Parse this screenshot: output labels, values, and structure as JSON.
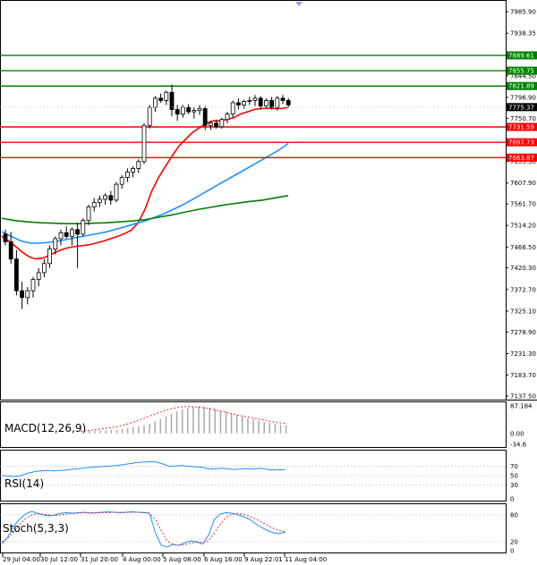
{
  "chart_data": {
    "type": "candlestick",
    "x_ticks": [
      "29 Jul 04:00",
      "30 Jul 12:00",
      "31 Jul 20:00",
      "4 Aug 00:00",
      "5 Aug 08:00",
      "6 Aug 16:00",
      "9 Aug 22:01",
      "11 Aug 04:00"
    ],
    "price_axis": {
      "ticks": [
        "7985.90",
        "7938.35",
        "7844.50",
        "7796.90",
        "7750.70",
        "7655.30",
        "7607.90",
        "7561.70",
        "7514.20",
        "7466.50",
        "7420.30",
        "7372.70",
        "7325.10",
        "7278.90",
        "7231.30",
        "7183.70",
        "7137.50"
      ],
      "ylim": [
        7137.5,
        8000
      ]
    },
    "candles": [
      [
        7495,
        7505,
        7470,
        7478
      ],
      [
        7478,
        7500,
        7430,
        7440
      ],
      [
        7440,
        7460,
        7360,
        7370
      ],
      [
        7370,
        7390,
        7330,
        7355
      ],
      [
        7355,
        7378,
        7340,
        7370
      ],
      [
        7370,
        7400,
        7355,
        7395
      ],
      [
        7395,
        7420,
        7380,
        7410
      ],
      [
        7410,
        7440,
        7400,
        7430
      ],
      [
        7430,
        7470,
        7420,
        7462
      ],
      [
        7462,
        7490,
        7450,
        7485
      ],
      [
        7485,
        7505,
        7470,
        7498
      ],
      [
        7498,
        7512,
        7485,
        7490
      ],
      [
        7490,
        7510,
        7470,
        7505
      ],
      [
        7505,
        7520,
        7420,
        7495
      ],
      [
        7495,
        7530,
        7490,
        7525
      ],
      [
        7525,
        7560,
        7515,
        7555
      ],
      [
        7555,
        7575,
        7545,
        7565
      ],
      [
        7565,
        7580,
        7555,
        7572
      ],
      [
        7572,
        7585,
        7560,
        7580
      ],
      [
        7580,
        7590,
        7560,
        7570
      ],
      [
        7570,
        7610,
        7565,
        7605
      ],
      [
        7605,
        7625,
        7595,
        7620
      ],
      [
        7620,
        7640,
        7610,
        7632
      ],
      [
        7632,
        7645,
        7620,
        7640
      ],
      [
        7640,
        7660,
        7630,
        7655
      ],
      [
        7655,
        7740,
        7650,
        7735
      ],
      [
        7735,
        7780,
        7728,
        7775
      ],
      [
        7775,
        7800,
        7765,
        7795
      ],
      [
        7795,
        7805,
        7785,
        7790
      ],
      [
        7790,
        7812,
        7780,
        7808
      ],
      [
        7808,
        7825,
        7755,
        7770
      ],
      [
        7770,
        7780,
        7745,
        7760
      ],
      [
        7760,
        7780,
        7752,
        7775
      ],
      [
        7775,
        7782,
        7760,
        7765
      ],
      [
        7765,
        7775,
        7750,
        7768
      ],
      [
        7768,
        7780,
        7758,
        7772
      ],
      [
        7772,
        7778,
        7725,
        7735
      ],
      [
        7735,
        7745,
        7725,
        7740
      ],
      [
        7740,
        7748,
        7728,
        7732
      ],
      [
        7732,
        7752,
        7728,
        7748
      ],
      [
        7748,
        7765,
        7740,
        7760
      ],
      [
        7760,
        7790,
        7752,
        7785
      ],
      [
        7785,
        7795,
        7770,
        7780
      ],
      [
        7780,
        7792,
        7772,
        7788
      ],
      [
        7788,
        7798,
        7780,
        7790
      ],
      [
        7790,
        7802,
        7778,
        7795
      ],
      [
        7795,
        7800,
        7770,
        7778
      ],
      [
        7778,
        7795,
        7772,
        7790
      ],
      [
        7790,
        7798,
        7770,
        7775
      ],
      [
        7775,
        7800,
        7768,
        7795
      ],
      [
        7795,
        7802,
        7782,
        7790
      ],
      [
        7790,
        7795,
        7775,
        7780
      ]
    ],
    "moving_averages": [
      {
        "color": "#ff0000",
        "values": [
          7490,
          7480,
          7468,
          7455,
          7445,
          7440,
          7442,
          7448,
          7456,
          7462,
          7466,
          7468,
          7470,
          7472,
          7476,
          7480,
          7485,
          7490,
          7496,
          7504,
          7520,
          7550,
          7590,
          7620,
          7645,
          7668,
          7690,
          7705,
          7720,
          7730,
          7740,
          7745,
          7745,
          7748,
          7752,
          7760,
          7765,
          7770,
          7772,
          7773,
          7772,
          7772,
          7775
        ]
      },
      {
        "color": "#1e90ff",
        "values": [
          7500,
          7490,
          7480,
          7475,
          7475,
          7477,
          7480,
          7484,
          7488,
          7492,
          7496,
          7500,
          7506,
          7512,
          7518,
          7524,
          7532,
          7540,
          7550,
          7560,
          7572,
          7584,
          7596,
          7608,
          7620,
          7632,
          7644,
          7656,
          7668,
          7680,
          7695
        ]
      },
      {
        "color": "#008000",
        "values": [
          7530,
          7525,
          7522,
          7520,
          7519,
          7518,
          7518,
          7519,
          7520,
          7522,
          7524,
          7527,
          7532,
          7537,
          7543,
          7549,
          7554,
          7559,
          7563,
          7567,
          7570,
          7575,
          7580
        ]
      }
    ],
    "levels": [
      {
        "value": "7889.61",
        "color": "#008000"
      },
      {
        "value": "7855.75",
        "color": "#008000"
      },
      {
        "value": "7821.89",
        "color": "#008000"
      },
      {
        "value": "7731.59",
        "color": "#ff0000"
      },
      {
        "value": "7697.73",
        "color": "#ff0000"
      },
      {
        "value": "7663.87",
        "color": "#ff0000"
      }
    ],
    "current_price": "7775.37",
    "macd": {
      "label": "MACD(12,26,9)",
      "ticks": [
        "87.184",
        "0.00",
        "-34.6"
      ],
      "ylim": [
        -34.6,
        87.184
      ],
      "histogram": [
        8,
        9,
        9,
        10,
        11,
        12,
        14,
        17,
        20,
        22,
        25,
        30,
        38,
        46,
        54,
        62,
        70,
        76,
        80,
        84,
        86,
        85,
        82,
        78,
        73,
        68,
        63,
        58,
        53,
        48,
        44,
        40,
        36,
        33,
        30,
        28,
        26
      ],
      "signal": [
        6,
        8,
        10,
        12,
        14,
        16,
        18,
        20,
        24,
        28,
        33,
        38,
        44,
        50,
        56,
        62,
        68,
        73,
        78,
        81,
        84,
        85,
        85,
        84,
        82,
        80,
        77,
        74,
        70,
        67,
        63,
        60,
        56,
        53,
        50,
        47,
        44,
        41,
        38,
        35,
        33,
        31
      ]
    },
    "rsi": {
      "label": "RSI(14)",
      "ticks": [
        "70",
        "50",
        "30",
        "0"
      ],
      "values": [
        50,
        49,
        48,
        50,
        55,
        58,
        60,
        61,
        60,
        61,
        62,
        64,
        65,
        67,
        68,
        69,
        70,
        71,
        72,
        74,
        76,
        78,
        79,
        80,
        79,
        75,
        70,
        71,
        72,
        70,
        69,
        68,
        65,
        64,
        66,
        65,
        63,
        64,
        65,
        64,
        66,
        64,
        62,
        63,
        62
      ]
    },
    "stoch": {
      "label": "Stoch(5,3,3)",
      "ticks": [
        "80",
        "20",
        "0"
      ],
      "k": [
        15,
        30,
        55,
        70,
        82,
        88,
        84,
        80,
        78,
        80,
        84,
        85,
        84,
        85,
        86,
        84,
        85,
        86,
        87,
        86,
        85,
        86,
        87,
        86,
        85,
        84,
        40,
        12,
        8,
        14,
        12,
        18,
        22,
        20,
        15,
        35,
        70,
        82,
        85,
        84,
        80,
        76,
        70,
        60,
        52,
        45,
        40,
        38,
        42
      ],
      "d": [
        20,
        28,
        42,
        58,
        72,
        80,
        82,
        82,
        80,
        79,
        80,
        82,
        83,
        84,
        85,
        85,
        84,
        85,
        85,
        86,
        86,
        85,
        86,
        86,
        86,
        84,
        70,
        45,
        22,
        14,
        12,
        14,
        17,
        19,
        18,
        22,
        40,
        60,
        75,
        82,
        83,
        81,
        77,
        71,
        64,
        57,
        50,
        45,
        42
      ]
    }
  }
}
